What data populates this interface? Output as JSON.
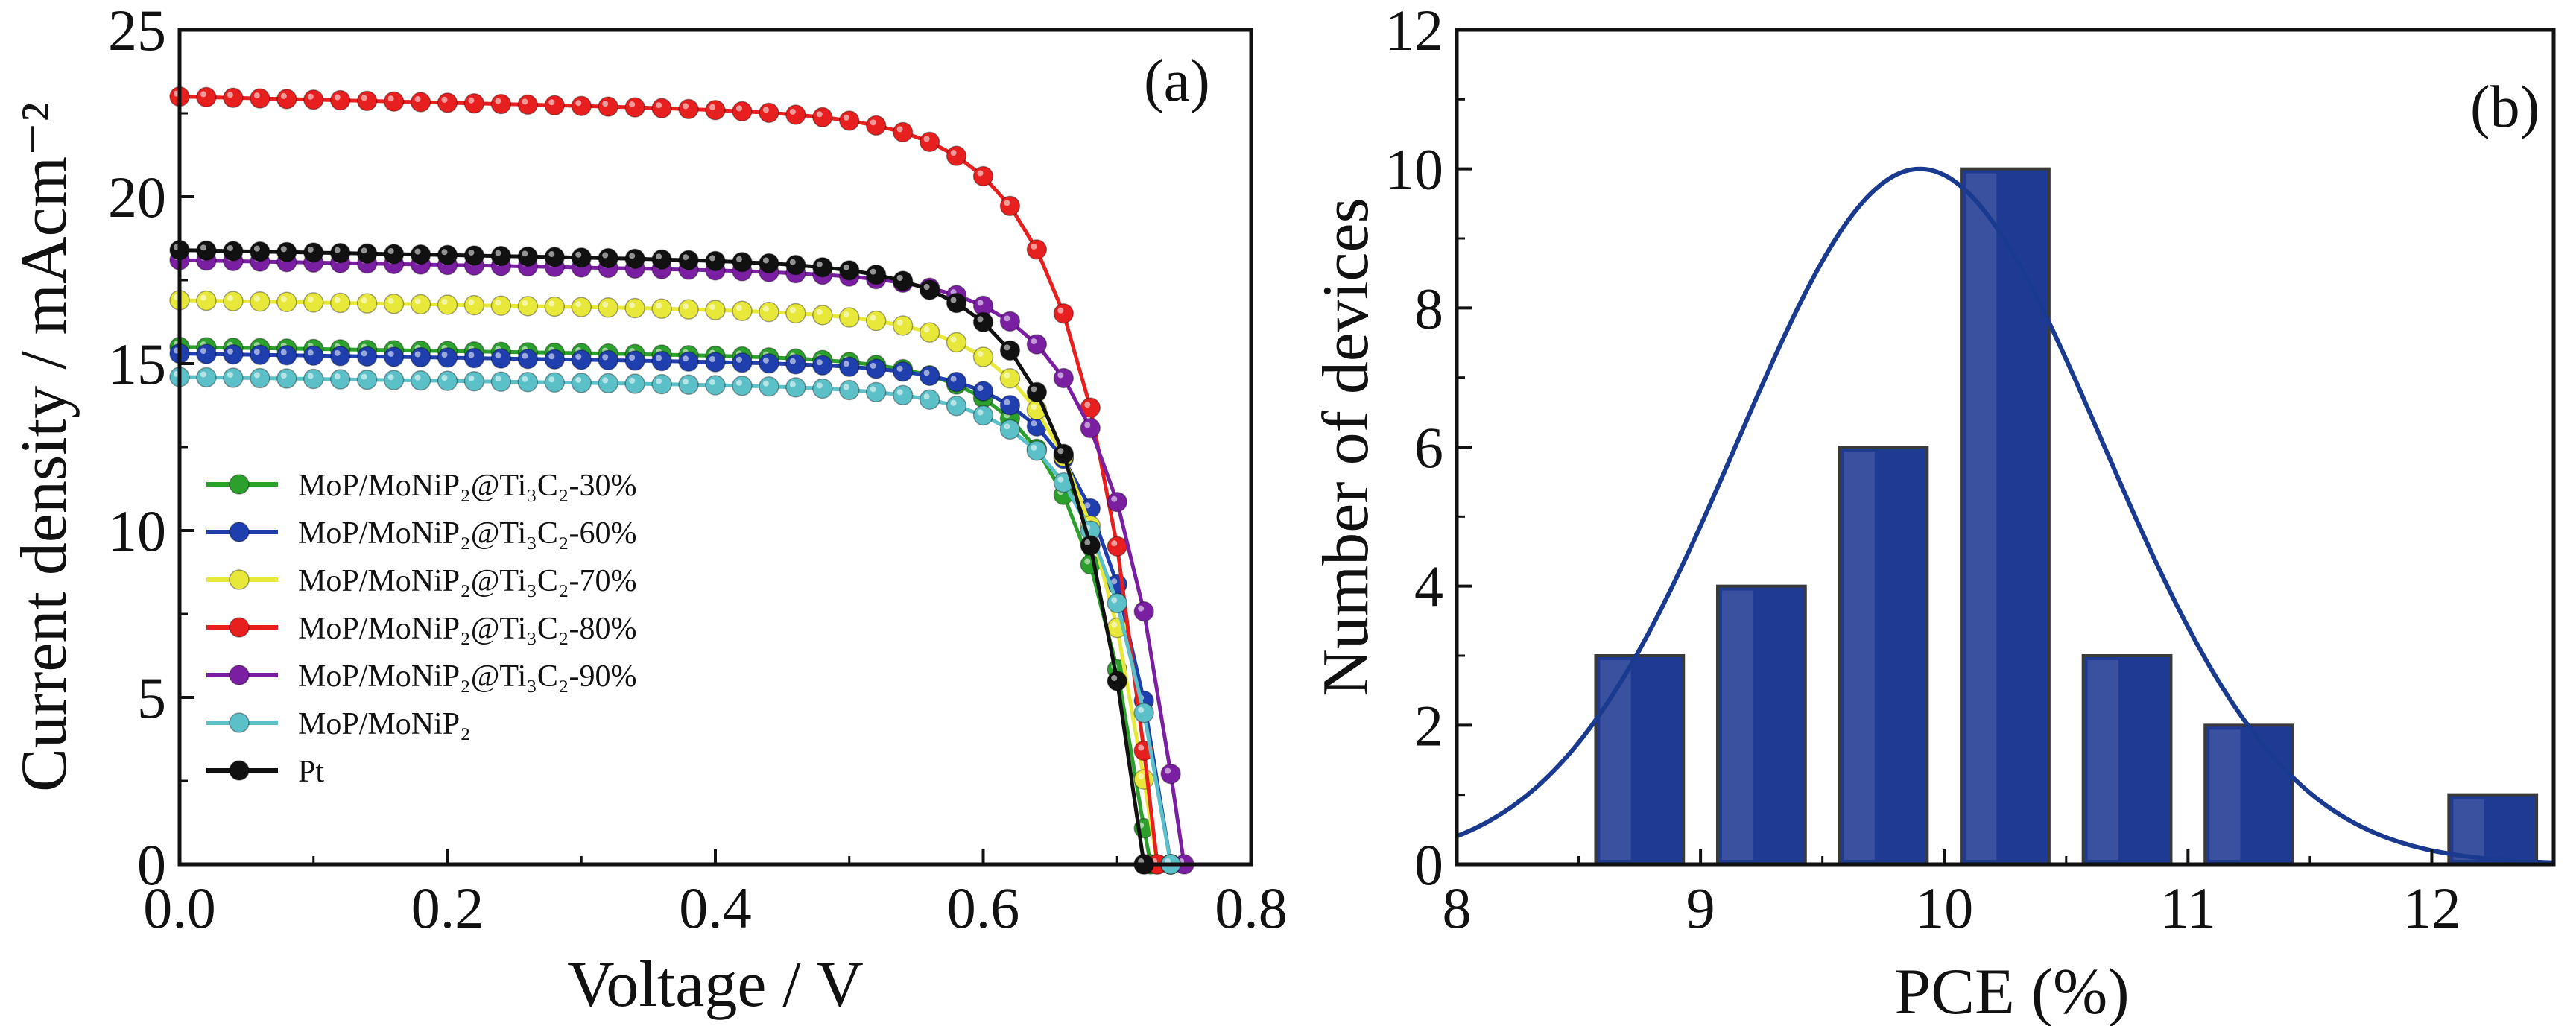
{
  "chart_data": [
    {
      "type": "line",
      "panel_label": "(a)",
      "xlabel": "Voltage / V",
      "ylabel": "Current density / mAcm⁻²",
      "xlim": [
        0,
        0.8
      ],
      "ylim": [
        0,
        25
      ],
      "xticks": [
        "0.0",
        "0.2",
        "0.4",
        "0.6",
        "0.8"
      ],
      "yticks": [
        "0",
        "5",
        "10",
        "15",
        "20",
        "25"
      ],
      "legend_position": "left-middle",
      "series": [
        {
          "name": "MoP/MoNiP₂@Ti₃C₂-30%",
          "color": "#2ca02c",
          "jsc": 15.5,
          "voc": 0.725,
          "fill_factor": 0.66
        },
        {
          "name": "MoP/MoNiP₂@Ti₃C₂-60%",
          "color": "#1f3fae",
          "jsc": 15.3,
          "voc": 0.74,
          "fill_factor": 0.68
        },
        {
          "name": "MoP/MoNiP₂@Ti₃C₂-70%",
          "color": "#e8e83a",
          "jsc": 16.9,
          "voc": 0.73,
          "fill_factor": 0.63
        },
        {
          "name": "MoP/MoNiP₂@Ti₃C₂-80%",
          "color": "#e81f1f",
          "jsc": 23.0,
          "voc": 0.73,
          "fill_factor": 0.62
        },
        {
          "name": "MoP/MoNiP₂@Ti₃C₂-90%",
          "color": "#7b1fa2",
          "jsc": 18.1,
          "voc": 0.75,
          "fill_factor": 0.63
        },
        {
          "name": "MoP/MoNiP₂",
          "color": "#5bc0c8",
          "jsc": 14.6,
          "voc": 0.74,
          "fill_factor": 0.66
        },
        {
          "name": "Pt",
          "color": "#111111",
          "jsc": 18.4,
          "voc": 0.72,
          "fill_factor": 0.63
        }
      ]
    },
    {
      "type": "bar",
      "panel_label": "(b)",
      "xlabel": "PCE (%)",
      "ylabel": "Number of devices",
      "xlim": [
        8,
        12.5
      ],
      "ylim": [
        0,
        12
      ],
      "xticks": [
        "8",
        "9",
        "10",
        "11",
        "12"
      ],
      "yticks": [
        "0",
        "2",
        "4",
        "6",
        "8",
        "10",
        "12"
      ],
      "bar_color": "#1f3a93",
      "bin_centers": [
        8.75,
        9.25,
        9.75,
        10.25,
        10.75,
        11.25,
        12.25
      ],
      "values": [
        3,
        4,
        6,
        10,
        3,
        2,
        1
      ],
      "fit_curve": {
        "type": "gaussian",
        "color": "#1a3a8f",
        "center": 9.9,
        "amplitude": 10.0,
        "sigma": 0.75
      }
    }
  ]
}
